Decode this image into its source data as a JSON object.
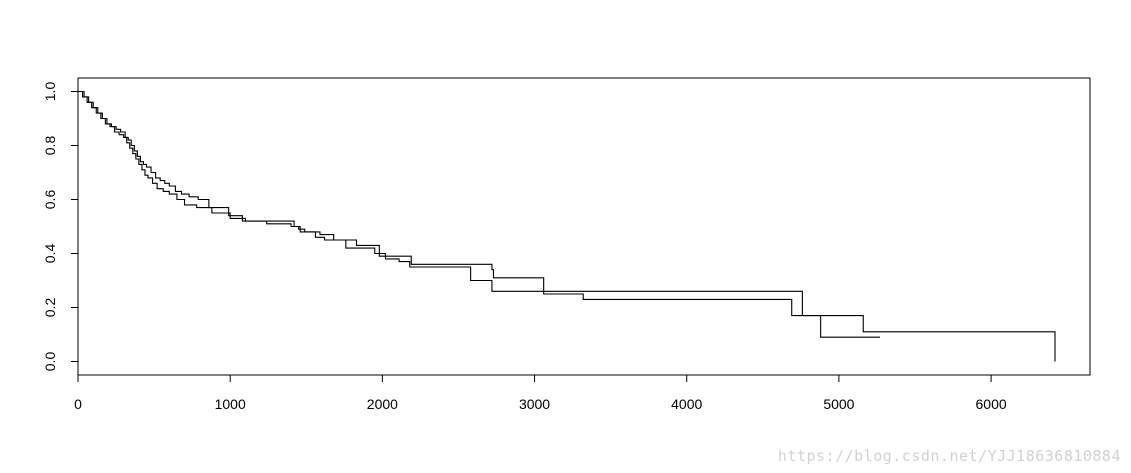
{
  "chart_data": {
    "type": "line",
    "subtype": "step (survival curves)",
    "title": "",
    "xlabel": "",
    "ylabel": "",
    "xlim": [
      0,
      6650
    ],
    "ylim": [
      -0.05,
      1.05
    ],
    "x_ticks": [
      0,
      1000,
      2000,
      3000,
      4000,
      5000,
      6000
    ],
    "y_ticks": [
      0.0,
      0.2,
      0.4,
      0.6,
      0.8,
      1.0
    ],
    "x_tick_labels": [
      "0",
      "1000",
      "2000",
      "3000",
      "4000",
      "5000",
      "6000"
    ],
    "y_tick_labels": [
      "0.0",
      "0.2",
      "0.4",
      "0.6",
      "0.8",
      "1.0"
    ],
    "grid": false,
    "legend": "none",
    "line_color": "#000000",
    "series": [
      {
        "x": [
          0,
          40,
          70,
          100,
          130,
          160,
          190,
          220,
          250,
          280,
          310,
          330,
          350,
          370,
          390,
          410,
          430,
          450,
          480,
          510,
          540,
          570,
          600,
          640,
          680,
          730,
          790,
          860,
          990,
          1080,
          1240,
          1400,
          1450,
          1490,
          1590,
          1680,
          1830,
          1980,
          2190,
          2720,
          2730,
          3060,
          3340,
          4760,
          4860,
          5160,
          6420
        ],
        "y": [
          1.0,
          0.98,
          0.96,
          0.94,
          0.92,
          0.9,
          0.88,
          0.87,
          0.86,
          0.85,
          0.83,
          0.82,
          0.8,
          0.78,
          0.76,
          0.74,
          0.73,
          0.72,
          0.7,
          0.68,
          0.67,
          0.66,
          0.65,
          0.63,
          0.62,
          0.61,
          0.6,
          0.57,
          0.54,
          0.52,
          0.51,
          0.5,
          0.49,
          0.48,
          0.47,
          0.45,
          0.43,
          0.39,
          0.36,
          0.34,
          0.31,
          0.26,
          0.26,
          0.17,
          0.17,
          0.11,
          0.0
        ]
      },
      {
        "x": [
          0,
          30,
          60,
          90,
          120,
          150,
          180,
          210,
          240,
          270,
          300,
          320,
          340,
          360,
          380,
          400,
          420,
          440,
          460,
          490,
          520,
          560,
          600,
          650,
          700,
          780,
          880,
          1000,
          1100,
          1420,
          1460,
          1560,
          1620,
          1760,
          1950,
          2020,
          2110,
          2180,
          2580,
          2720,
          3060,
          3320,
          4690,
          4880,
          5270
        ],
        "y": [
          1.0,
          0.98,
          0.96,
          0.94,
          0.92,
          0.9,
          0.88,
          0.87,
          0.85,
          0.84,
          0.83,
          0.81,
          0.79,
          0.77,
          0.75,
          0.73,
          0.71,
          0.69,
          0.68,
          0.66,
          0.64,
          0.63,
          0.62,
          0.6,
          0.58,
          0.57,
          0.55,
          0.53,
          0.52,
          0.5,
          0.48,
          0.46,
          0.45,
          0.42,
          0.4,
          0.38,
          0.37,
          0.35,
          0.3,
          0.26,
          0.25,
          0.23,
          0.17,
          0.09,
          0.09
        ]
      }
    ]
  },
  "watermark": "https://blog.csdn.net/YJJ18636810884"
}
